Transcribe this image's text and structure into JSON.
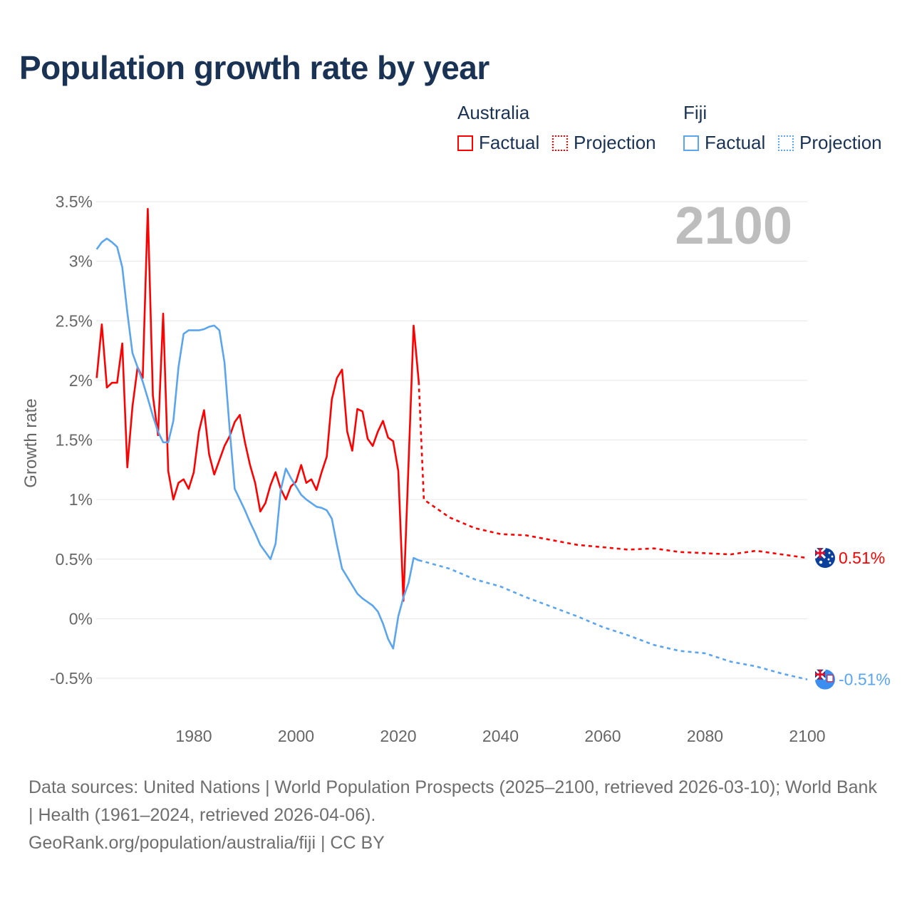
{
  "title": "Population growth rate by year",
  "legend": {
    "groups": [
      {
        "name": "Australia",
        "factual": "Factual",
        "projection": "Projection",
        "color": "#ff0000"
      },
      {
        "name": "Fiji",
        "factual": "Factual",
        "projection": "Projection",
        "color": "#5aa5ee"
      }
    ]
  },
  "year_display": "2100",
  "chart_data": {
    "type": "line",
    "title": "Population growth rate by year",
    "xlabel": "",
    "ylabel": "Growth rate",
    "xlim": [
      1961,
      2100
    ],
    "ylim": [
      -0.5,
      3.5
    ],
    "x_ticks": [
      1980,
      2000,
      2020,
      2040,
      2060,
      2080,
      2100
    ],
    "x_tick_labels": [
      "1980",
      "2000",
      "2020",
      "2040",
      "2060",
      "2080",
      "2100"
    ],
    "y_ticks": [
      -0.5,
      0,
      0.5,
      1,
      1.5,
      2,
      2.5,
      3,
      3.5
    ],
    "y_tick_labels": [
      "-0.5%",
      "0%",
      "0.5%",
      "1%",
      "1.5%",
      "2%",
      "2.5%",
      "3%",
      "3.5%"
    ],
    "grid": true,
    "legend_position": "top-right",
    "series": [
      {
        "name": "Australia",
        "kind": "Factual",
        "color": "#ff0000",
        "x_start": 1961,
        "values": [
          2.02,
          2.47,
          1.94,
          1.98,
          1.98,
          2.31,
          1.27,
          1.78,
          2.11,
          2.02,
          3.44,
          1.87,
          1.54,
          2.56,
          1.24,
          1.0,
          1.14,
          1.17,
          1.09,
          1.23,
          1.57,
          1.75,
          1.38,
          1.21,
          1.33,
          1.45,
          1.53,
          1.65,
          1.71,
          1.48,
          1.29,
          1.14,
          0.9,
          0.97,
          1.12,
          1.23,
          1.09,
          1.0,
          1.11,
          1.15,
          1.29,
          1.14,
          1.17,
          1.08,
          1.23,
          1.36,
          1.84,
          2.02,
          2.09,
          1.57,
          1.41,
          1.76,
          1.74,
          1.51,
          1.45,
          1.57,
          1.66,
          1.52,
          1.49,
          1.24,
          0.15,
          1.3,
          2.46,
          1.99
        ]
      },
      {
        "name": "Australia",
        "kind": "Projection",
        "color": "#ff0000",
        "x": [
          2024,
          2025,
          2030,
          2035,
          2040,
          2045,
          2050,
          2055,
          2060,
          2065,
          2070,
          2075,
          2080,
          2085,
          2090,
          2095,
          2100
        ],
        "values": [
          1.99,
          1.0,
          0.85,
          0.76,
          0.71,
          0.7,
          0.66,
          0.62,
          0.6,
          0.58,
          0.59,
          0.56,
          0.55,
          0.54,
          0.57,
          0.54,
          0.51
        ]
      },
      {
        "name": "Fiji",
        "kind": "Factual",
        "color": "#5aa5ee",
        "x_start": 1961,
        "values": [
          3.1,
          3.16,
          3.19,
          3.16,
          3.12,
          2.95,
          2.57,
          2.23,
          2.11,
          1.99,
          1.85,
          1.7,
          1.57,
          1.48,
          1.48,
          1.66,
          2.11,
          2.39,
          2.42,
          2.42,
          2.42,
          2.43,
          2.45,
          2.46,
          2.42,
          2.15,
          1.6,
          1.09,
          1.0,
          0.91,
          0.81,
          0.72,
          0.62,
          0.56,
          0.5,
          0.63,
          1.08,
          1.26,
          1.18,
          1.11,
          1.04,
          1.0,
          0.97,
          0.94,
          0.93,
          0.91,
          0.84,
          0.62,
          0.42,
          0.35,
          0.28,
          0.21,
          0.17,
          0.14,
          0.11,
          0.06,
          -0.04,
          -0.17,
          -0.25,
          0.02,
          0.18,
          0.3,
          0.51,
          0.49
        ]
      },
      {
        "name": "Fiji",
        "kind": "Projection",
        "color": "#5aa5ee",
        "x": [
          2024,
          2025,
          2030,
          2035,
          2040,
          2045,
          2050,
          2055,
          2060,
          2065,
          2070,
          2075,
          2080,
          2085,
          2090,
          2095,
          2100
        ],
        "values": [
          0.49,
          0.48,
          0.42,
          0.33,
          0.27,
          0.18,
          0.1,
          0.02,
          -0.07,
          -0.14,
          -0.22,
          -0.27,
          -0.29,
          -0.36,
          -0.4,
          -0.46,
          -0.51
        ]
      }
    ],
    "end_labels": [
      {
        "series": "Australia",
        "text": "0.51%",
        "value": 0.51,
        "color": "#ff0000"
      },
      {
        "series": "Fiji",
        "text": "-0.51%",
        "value": -0.51,
        "color": "#5aa5ee"
      }
    ]
  },
  "footer": {
    "sources": "Data sources: United Nations | World Population Prospects (2025–2100, retrieved 2026-03-10); World Bank | Health (1961–2024, retrieved 2026-04-06).",
    "credit": "GeoRank.org/population/australia/fiji | CC BY"
  }
}
